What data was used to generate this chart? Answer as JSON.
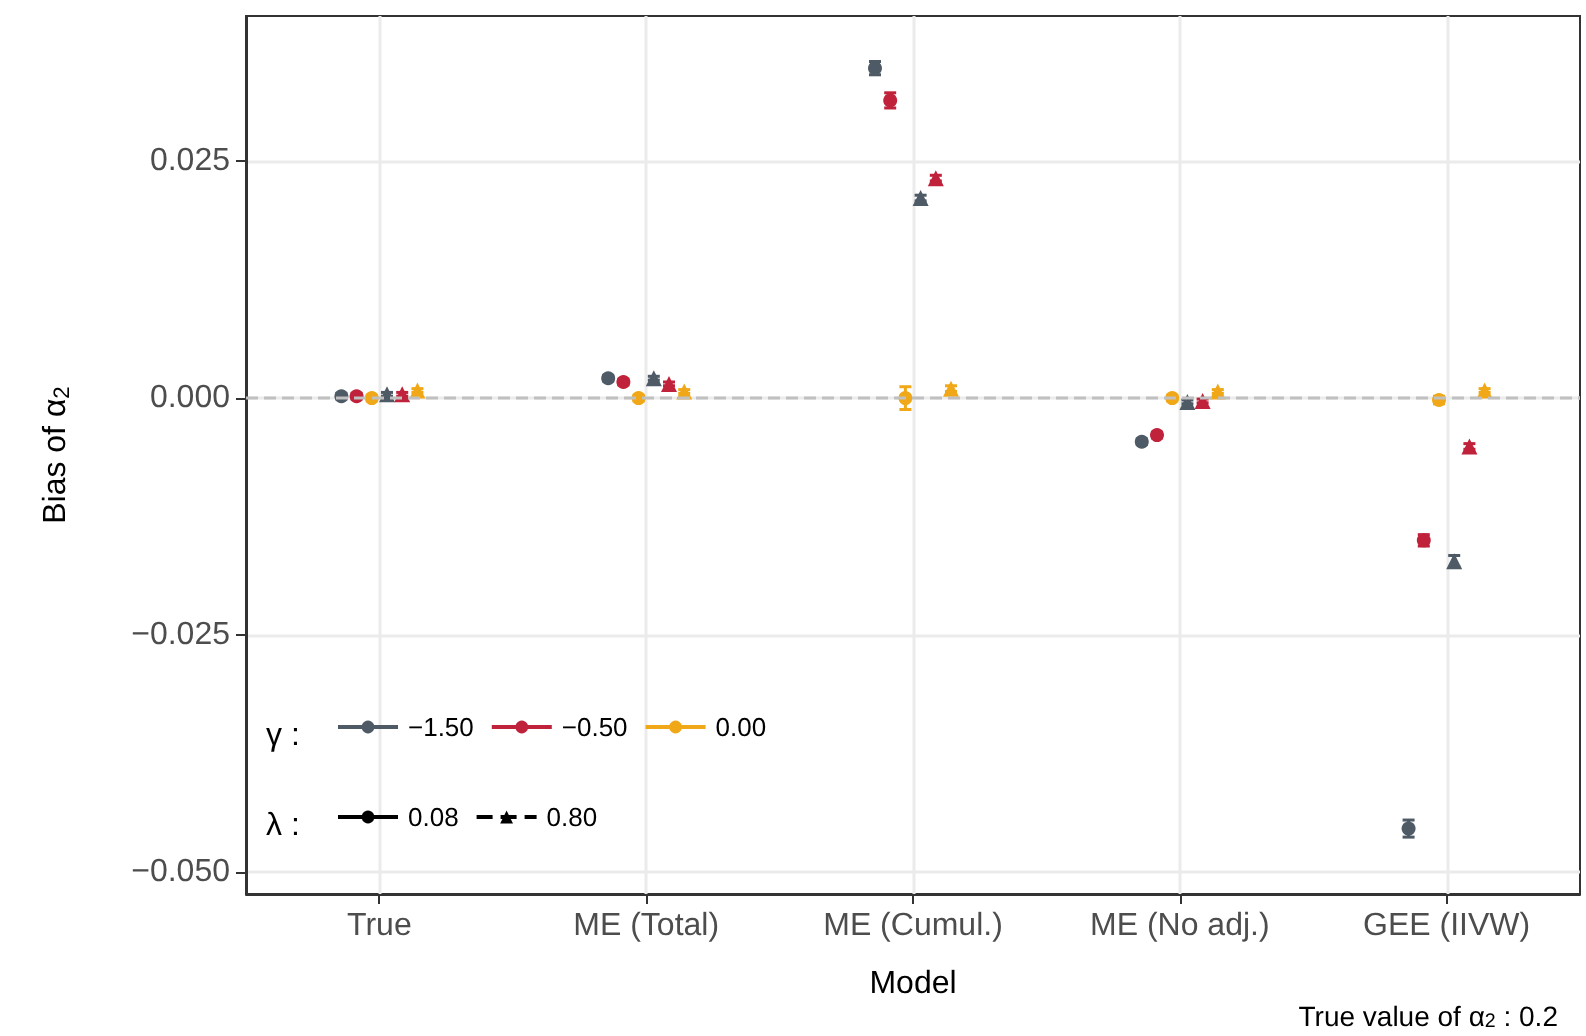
{
  "chart_data": {
    "type": "scatter",
    "xlabel": "Model",
    "ylabel": "Bias of α$_{2}$",
    "legend_title": "γ :",
    "annotations": [
      "λ :",
      "True value of α$_{2}$ : 0.2"
    ],
    "categories": [
      "True",
      "ME (Total)",
      "ME (Cumul.)",
      "ME (No adj.)",
      "GEE (IIVW)"
    ],
    "ylim": [
      -0.0523,
      0.0403
    ],
    "yticks": [
      {
        "value": -0.05,
        "label": "−0.050"
      },
      {
        "value": -0.025,
        "label": "−0.025"
      },
      {
        "value": 0,
        "label": "0.000"
      },
      {
        "value": 0.025,
        "label": "0.025"
      }
    ],
    "grid": true,
    "legend": "bottom left",
    "ref_lines": [
      {
        "axis": "y",
        "value": 0,
        "color": "#c0c0c0",
        "line_style": "dashed"
      }
    ],
    "series": [
      {
        "color": "#4e5a65",
        "marker": "circle",
        "values": [
          0.0002,
          0.0021,
          0.0348,
          -0.0046,
          -0.0454
        ],
        "errors": [
          0.0003,
          0.0003,
          0.0007,
          0.0003,
          0.0009
        ]
      },
      {
        "color": "#c0223b",
        "marker": "circle",
        "values": [
          0.0002,
          0.0017,
          0.0314,
          -0.0039,
          -0.015
        ],
        "errors": [
          0.0003,
          0.0003,
          0.0008,
          0.0003,
          0.0006
        ]
      },
      {
        "color": "#f0a818",
        "marker": "circle",
        "values": [
          0.0,
          0.0,
          0.0,
          0.0,
          -0.0002
        ],
        "errors": [
          0.0003,
          0.0003,
          0.0012,
          0.0003,
          0.0004
        ]
      },
      {
        "color": "#4e5a65",
        "marker": "triangle",
        "values": [
          0.0004,
          0.0021,
          0.0211,
          -0.0004,
          -0.0172
        ],
        "errors": [
          0.0002,
          0.0002,
          0.0003,
          0.0002,
          0.0006
        ]
      },
      {
        "color": "#c0223b",
        "marker": "triangle",
        "values": [
          0.0004,
          0.0015,
          0.0232,
          -0.0003,
          -0.0051
        ],
        "errors": [
          0.0002,
          0.0002,
          0.0003,
          0.0002,
          0.0003
        ]
      },
      {
        "color": "#f0a818",
        "marker": "triangle",
        "values": [
          0.0008,
          0.0007,
          0.001,
          0.0007,
          0.0008
        ],
        "errors": [
          0.0002,
          0.0002,
          0.0003,
          0.0002,
          0.0002
        ]
      },
      {
        "type": "line",
        "name": "−1.50",
        "color": "#4e5a65",
        "marker": "circle",
        "values": [
          null,
          null,
          null,
          null,
          null
        ]
      },
      {
        "type": "line",
        "name": "−0.50",
        "color": "#c0223b",
        "marker": "circle",
        "values": [
          null,
          null,
          null,
          null,
          null
        ]
      },
      {
        "type": "line",
        "name": "0.00",
        "color": "#f0a818",
        "marker": "circle",
        "values": [
          null,
          null,
          null,
          null,
          null
        ]
      },
      {
        "type": "line",
        "name": "0.08",
        "color": "#000000",
        "marker": "circle",
        "line_style": "solid",
        "values": [
          null,
          null,
          null,
          null,
          null
        ]
      },
      {
        "type": "line",
        "name": "0.80",
        "color": "#000000",
        "marker": "triangle",
        "line_style": "dashed",
        "values": [
          null,
          null,
          null,
          null,
          null
        ]
      }
    ]
  }
}
